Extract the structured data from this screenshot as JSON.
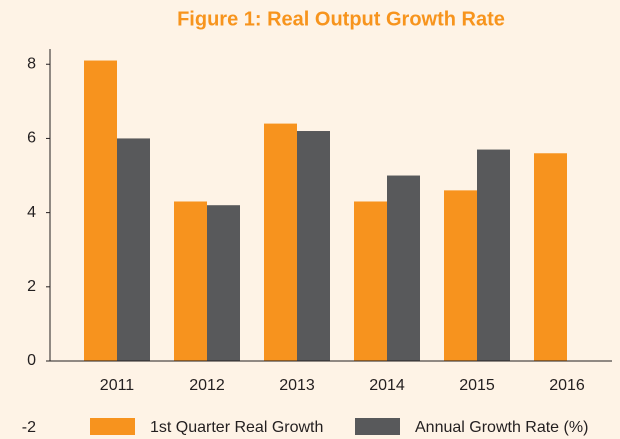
{
  "chart_data": {
    "type": "bar",
    "title": "Figure 1: Real Output Growth Rate",
    "categories": [
      "2011",
      "2012",
      "2013",
      "2014",
      "2015",
      "2016"
    ],
    "series": [
      {
        "name": "1st Quarter Real Growth",
        "color": "#f7931e",
        "values": [
          8.1,
          4.3,
          6.4,
          4.3,
          4.6,
          5.6
        ]
      },
      {
        "name": "Annual Growth Rate (%)",
        "color": "#58595b",
        "values": [
          6.0,
          4.2,
          6.2,
          5.0,
          5.7,
          null
        ]
      }
    ],
    "ylim": [
      -2,
      8.4
    ],
    "yticks": [
      -2,
      0,
      2,
      4,
      6,
      8
    ],
    "grid": false,
    "legend": "bottom"
  }
}
